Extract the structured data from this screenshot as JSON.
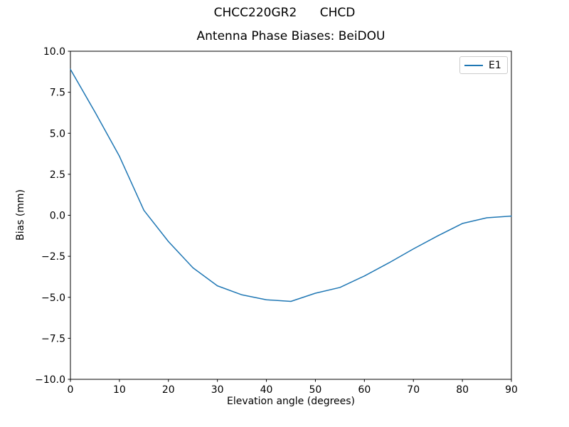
{
  "figure": {
    "suptitle": "CHCC220GR2      CHCD",
    "title": "Antenna Phase Biases: BeiDOU",
    "xlabel": "Elevation angle (degrees)",
    "ylabel": "Bias (mm)"
  },
  "legend": {
    "position": "upper right",
    "entries": [
      {
        "label": "E1",
        "color": "#1f77b4"
      }
    ]
  },
  "chart_data": {
    "type": "line",
    "suptitle": "CHCC220GR2      CHCD",
    "title": "Antenna Phase Biases: BeiDOU",
    "xlabel": "Elevation angle (degrees)",
    "ylabel": "Bias (mm)",
    "xlim": [
      0,
      90
    ],
    "ylim": [
      -10,
      10
    ],
    "xticks": [
      0,
      10,
      20,
      30,
      40,
      50,
      60,
      70,
      80,
      90
    ],
    "xtick_labels": [
      "0",
      "10",
      "20",
      "30",
      "40",
      "50",
      "60",
      "70",
      "80",
      "90"
    ],
    "yticks": [
      10.0,
      7.5,
      5.0,
      2.5,
      0.0,
      -2.5,
      -5.0,
      -7.5,
      -10.0
    ],
    "ytick_labels": [
      "10.0",
      "7.5",
      "5.0",
      "2.5",
      "0.0",
      "−2.5",
      "−5.0",
      "−7.5",
      "−10.0"
    ],
    "grid": false,
    "legend_position": "upper right",
    "background": "#ffffff",
    "spine_color": "#000000",
    "series": [
      {
        "name": "E1",
        "color": "#1f77b4",
        "x": [
          0,
          5,
          10,
          15,
          20,
          25,
          30,
          35,
          40,
          45,
          50,
          55,
          60,
          65,
          70,
          75,
          80,
          85,
          90
        ],
        "y": [
          8.9,
          6.3,
          3.6,
          0.3,
          -1.6,
          -3.2,
          -4.3,
          -4.85,
          -5.15,
          -5.25,
          -4.75,
          -4.4,
          -3.7,
          -2.9,
          -2.05,
          -1.25,
          -0.5,
          -0.15,
          -0.05
        ]
      }
    ]
  }
}
